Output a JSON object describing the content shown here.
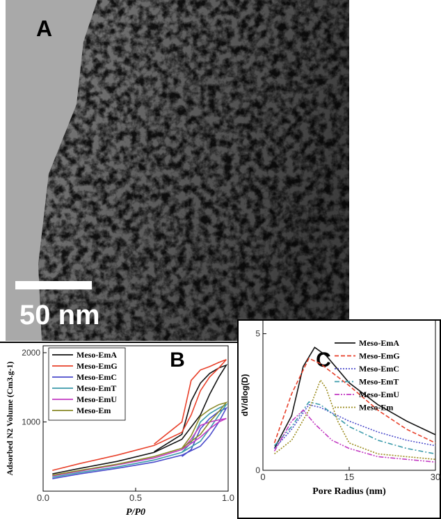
{
  "figure": {
    "panel_label": "A",
    "scale_bar_label": "50 nm"
  },
  "chart_data": [
    {
      "type": "line",
      "title": "B",
      "x_label": "P/P0",
      "y_label": "Adsorbed N2 Volume (Cm3.g-1)",
      "xlim": [
        0,
        1
      ],
      "ylim": [
        0,
        2100
      ],
      "xticks": [
        {
          "value": 0,
          "label": "0.0"
        },
        0.5,
        {
          "value": 1,
          "label": "1.0"
        }
      ],
      "yticks": [
        1000,
        2000
      ],
      "legend": "top-left",
      "series": [
        {
          "name": "Meso-EmA",
          "color": "#111111",
          "x": [
            0.05,
            0.2,
            0.4,
            0.6,
            0.75,
            0.85,
            0.9,
            0.95,
            0.99,
            0.95,
            0.9,
            0.85,
            0.8,
            0.75,
            0.6
          ],
          "values": [
            250,
            330,
            430,
            560,
            750,
            1100,
            1400,
            1650,
            1820,
            1780,
            1700,
            1560,
            1300,
            820,
            570
          ]
        },
        {
          "name": "Meso-EmG",
          "color": "#e8402a",
          "x": [
            0.05,
            0.2,
            0.4,
            0.6,
            0.75,
            0.8,
            0.85,
            0.9,
            0.95,
            0.99,
            0.95,
            0.9,
            0.85,
            0.8,
            0.75,
            0.6
          ],
          "values": [
            300,
            400,
            520,
            660,
            850,
            1100,
            1450,
            1650,
            1780,
            1900,
            1860,
            1800,
            1750,
            1600,
            1000,
            680
          ]
        },
        {
          "name": "Meso-EmC",
          "color": "#4a4acb",
          "x": [
            0.05,
            0.2,
            0.4,
            0.6,
            0.75,
            0.85,
            0.9,
            0.95,
            0.99,
            0.95,
            0.9,
            0.85,
            0.8,
            0.75
          ],
          "values": [
            180,
            250,
            330,
            420,
            520,
            650,
            800,
            1000,
            1200,
            1150,
            1050,
            900,
            600,
            500
          ]
        },
        {
          "name": "Meso-EmT",
          "color": "#3a9aaa",
          "x": [
            0.05,
            0.2,
            0.4,
            0.6,
            0.75,
            0.85,
            0.9,
            0.95,
            0.99,
            0.95,
            0.9,
            0.85,
            0.8,
            0.75
          ],
          "values": [
            200,
            270,
            350,
            450,
            560,
            720,
            900,
            1100,
            1250,
            1200,
            1120,
            1000,
            700,
            560
          ]
        },
        {
          "name": "Meso-EmU",
          "color": "#c23ac2",
          "x": [
            0.05,
            0.2,
            0.4,
            0.6,
            0.75,
            0.85,
            0.9,
            0.95,
            0.99,
            0.95,
            0.9,
            0.85,
            0.8,
            0.75
          ],
          "values": [
            220,
            290,
            380,
            480,
            600,
            780,
            900,
            1000,
            1050,
            1030,
            1000,
            950,
            750,
            600
          ]
        },
        {
          "name": "Meso-Em",
          "color": "#8a8a2a",
          "x": [
            0.05,
            0.2,
            0.4,
            0.6,
            0.75,
            0.85,
            0.9,
            0.95,
            0.99,
            0.95,
            0.9,
            0.85,
            0.8,
            0.75
          ],
          "values": [
            230,
            300,
            390,
            500,
            620,
            820,
            1000,
            1150,
            1280,
            1250,
            1180,
            1080,
            800,
            620
          ]
        }
      ]
    },
    {
      "type": "line",
      "title": "C",
      "x_label": "Pore Radius (nm)",
      "y_label": "dV/dlog(D)",
      "xlim": [
        0,
        30
      ],
      "ylim": [
        0,
        5.5
      ],
      "xticks": [
        0,
        15,
        30
      ],
      "yticks": [
        0,
        5
      ],
      "legend": "top-right",
      "series": [
        {
          "name": "Meso-EmA",
          "color": "#111111",
          "dash": "solid",
          "x": [
            2,
            5,
            7,
            9,
            11,
            15,
            20,
            25,
            30
          ],
          "values": [
            0.8,
            2,
            3.8,
            4.5,
            4.2,
            3.2,
            2.4,
            1.8,
            1.3
          ]
        },
        {
          "name": "Meso-EmG",
          "color": "#e8402a",
          "dash": "dashed",
          "x": [
            2,
            5,
            8,
            10,
            15,
            20,
            25,
            30
          ],
          "values": [
            1,
            2.8,
            4.1,
            3.9,
            3.1,
            2.2,
            1.5,
            1
          ]
        },
        {
          "name": "Meso-EmC",
          "color": "#4a4acb",
          "dash": "dotted",
          "x": [
            2,
            5,
            8,
            10,
            15,
            20,
            25,
            30
          ],
          "values": [
            0.8,
            1.5,
            2.4,
            2.3,
            1.8,
            1.4,
            1.1,
            0.9
          ]
        },
        {
          "name": "Meso-EmT",
          "color": "#3a9aaa",
          "dash": "dashdot",
          "x": [
            2,
            5,
            8,
            10,
            15,
            20,
            25,
            30
          ],
          "values": [
            0.9,
            1.6,
            2.5,
            2.4,
            1.6,
            1.1,
            0.8,
            0.6
          ]
        },
        {
          "name": "Meso-EmU",
          "color": "#c23ac2",
          "dash": "dashdotdot",
          "x": [
            2,
            5,
            7,
            9,
            12,
            15,
            20,
            25,
            30
          ],
          "values": [
            0.7,
            1.8,
            2.2,
            1.7,
            1.1,
            0.8,
            0.5,
            0.4,
            0.3
          ]
        },
        {
          "name": "Meso-Em",
          "color": "#9a8a1a",
          "dash": "dotted",
          "x": [
            2,
            5,
            8,
            10,
            11,
            13,
            15,
            20,
            25,
            30
          ],
          "values": [
            0.6,
            1.1,
            2.2,
            3.3,
            3,
            1.8,
            1,
            0.6,
            0.5,
            0.4
          ]
        }
      ]
    }
  ]
}
